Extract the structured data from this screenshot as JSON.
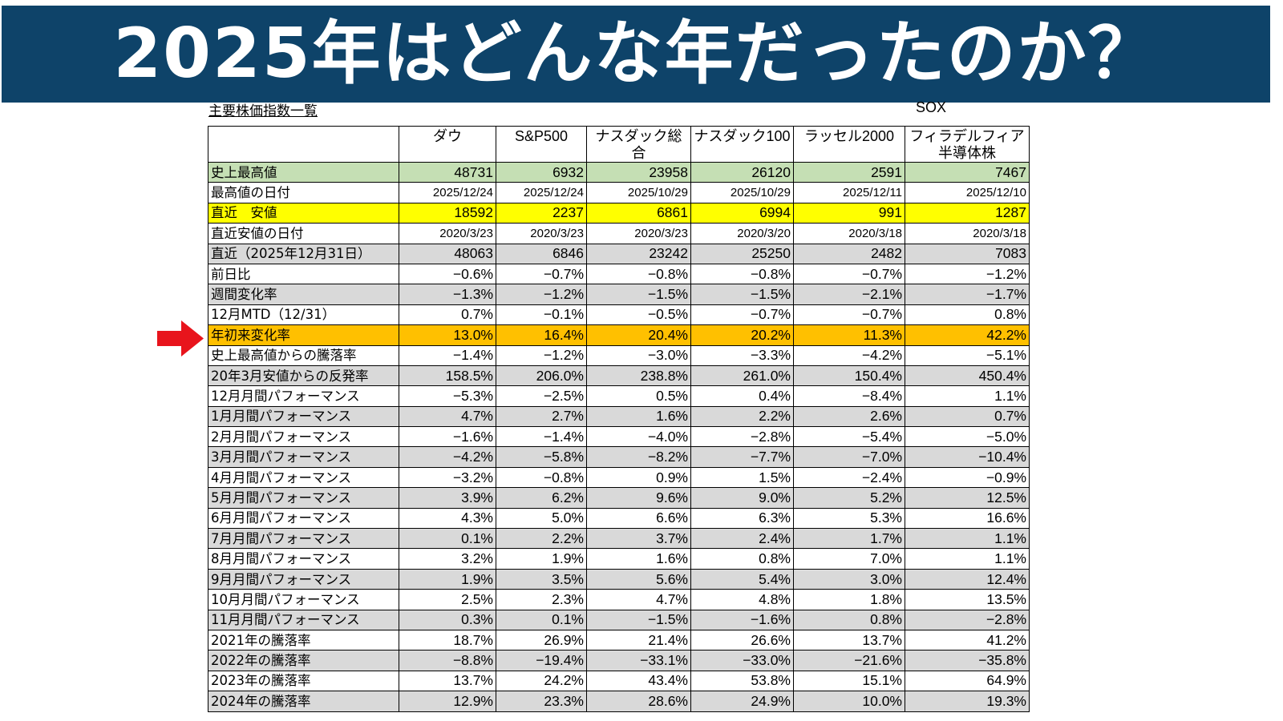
{
  "banner": {
    "title": "2025年はどんな年だったのか？"
  },
  "sheet": {
    "title": "主要株価指数一覧",
    "sox": "SOX"
  },
  "colors": {
    "banner": "#0e4369",
    "green": "#c5dfb4",
    "yellow": "#ffff00",
    "orange": "#ffc000",
    "gray": "#d9d9d9",
    "arrow": "#e8141c"
  },
  "columns": [
    "ダウ",
    "S&P500",
    "ナスダック総合",
    "ナスダック100",
    "ラッセル2000",
    "フィラデルフィア\n半導体株"
  ],
  "rows": [
    {
      "label": "史上最高値",
      "style": "green",
      "values": [
        "48731",
        "6932",
        "23958",
        "26120",
        "2591",
        "7467"
      ]
    },
    {
      "label": "最高値の日付",
      "style": "white",
      "small": true,
      "values": [
        "2025/12/24",
        "2025/12/24",
        "2025/10/29",
        "2025/10/29",
        "2025/12/11",
        "2025/12/10"
      ]
    },
    {
      "label": "直近　安値",
      "style": "yellow",
      "values": [
        "18592",
        "2237",
        "6861",
        "6994",
        "991",
        "1287"
      ]
    },
    {
      "label": "直近安値の日付",
      "style": "white",
      "small": true,
      "values": [
        "2020/3/23",
        "2020/3/23",
        "2020/3/23",
        "2020/3/20",
        "2020/3/18",
        "2020/3/18"
      ]
    },
    {
      "label": "直近（2025年12月31日）",
      "style": "gray",
      "values": [
        "48063",
        "6846",
        "23242",
        "25250",
        "2482",
        "7083"
      ]
    },
    {
      "label": "前日比",
      "style": "white",
      "values": [
        "−0.6%",
        "−0.7%",
        "−0.8%",
        "−0.8%",
        "−0.7%",
        "−1.2%"
      ]
    },
    {
      "label": "週間変化率",
      "style": "gray",
      "values": [
        "−1.3%",
        "−1.2%",
        "−1.5%",
        "−1.5%",
        "−2.1%",
        "−1.7%"
      ]
    },
    {
      "label": "12月MTD（12/31）",
      "style": "white",
      "values": [
        "0.7%",
        "−0.1%",
        "−0.5%",
        "−0.7%",
        "−0.7%",
        "0.8%"
      ]
    },
    {
      "label": "年初来変化率",
      "style": "orange",
      "values": [
        "13.0%",
        "16.4%",
        "20.4%",
        "20.2%",
        "11.3%",
        "42.2%"
      ]
    },
    {
      "label": "史上最高値からの騰落率",
      "style": "white",
      "values": [
        "−1.4%",
        "−1.2%",
        "−3.0%",
        "−3.3%",
        "−4.2%",
        "−5.1%"
      ]
    },
    {
      "label": "20年3月安値からの反発率",
      "style": "gray",
      "values": [
        "158.5%",
        "206.0%",
        "238.8%",
        "261.0%",
        "150.4%",
        "450.4%"
      ]
    },
    {
      "label": "12月月間パフォーマンス",
      "style": "white",
      "values": [
        "−5.3%",
        "−2.5%",
        "0.5%",
        "0.4%",
        "−8.4%",
        "1.1%"
      ]
    },
    {
      "label": "1月月間パフォーマンス",
      "style": "gray",
      "values": [
        "4.7%",
        "2.7%",
        "1.6%",
        "2.2%",
        "2.6%",
        "0.7%"
      ]
    },
    {
      "label": "2月月間パフォーマンス",
      "style": "white",
      "values": [
        "−1.6%",
        "−1.4%",
        "−4.0%",
        "−2.8%",
        "−5.4%",
        "−5.0%"
      ]
    },
    {
      "label": "3月月間パフォーマンス",
      "style": "gray",
      "values": [
        "−4.2%",
        "−5.8%",
        "−8.2%",
        "−7.7%",
        "−7.0%",
        "−10.4%"
      ]
    },
    {
      "label": "4月月間パフォーマンス",
      "style": "white",
      "values": [
        "−3.2%",
        "−0.8%",
        "0.9%",
        "1.5%",
        "−2.4%",
        "−0.9%"
      ]
    },
    {
      "label": "5月月間パフォーマンス",
      "style": "gray",
      "values": [
        "3.9%",
        "6.2%",
        "9.6%",
        "9.0%",
        "5.2%",
        "12.5%"
      ]
    },
    {
      "label": "6月月間パフォーマンス",
      "style": "white",
      "values": [
        "4.3%",
        "5.0%",
        "6.6%",
        "6.3%",
        "5.3%",
        "16.6%"
      ]
    },
    {
      "label": "7月月間パフォーマンス",
      "style": "gray",
      "values": [
        "0.1%",
        "2.2%",
        "3.7%",
        "2.4%",
        "1.7%",
        "1.1%"
      ]
    },
    {
      "label": "8月月間パフォーマンス",
      "style": "white",
      "values": [
        "3.2%",
        "1.9%",
        "1.6%",
        "0.8%",
        "7.0%",
        "1.1%"
      ]
    },
    {
      "label": "9月月間パフォーマンス",
      "style": "gray",
      "values": [
        "1.9%",
        "3.5%",
        "5.6%",
        "5.4%",
        "3.0%",
        "12.4%"
      ]
    },
    {
      "label": "10月月間パフォーマンス",
      "style": "white",
      "values": [
        "2.5%",
        "2.3%",
        "4.7%",
        "4.8%",
        "1.8%",
        "13.5%"
      ]
    },
    {
      "label": "11月月間パフォーマンス",
      "style": "gray",
      "values": [
        "0.3%",
        "0.1%",
        "−1.5%",
        "−1.6%",
        "0.8%",
        "−2.8%"
      ]
    },
    {
      "label": "2021年の騰落率",
      "style": "white",
      "values": [
        "18.7%",
        "26.9%",
        "21.4%",
        "26.6%",
        "13.7%",
        "41.2%"
      ]
    },
    {
      "label": "2022年の騰落率",
      "style": "gray",
      "values": [
        "−8.8%",
        "−19.4%",
        "−33.1%",
        "−33.0%",
        "−21.6%",
        "−35.8%"
      ]
    },
    {
      "label": "2023年の騰落率",
      "style": "white",
      "values": [
        "13.7%",
        "24.2%",
        "43.4%",
        "53.8%",
        "15.1%",
        "64.9%"
      ]
    },
    {
      "label": "2024年の騰落率",
      "style": "gray",
      "values": [
        "12.9%",
        "23.3%",
        "28.6%",
        "24.9%",
        "10.0%",
        "19.3%"
      ]
    }
  ]
}
